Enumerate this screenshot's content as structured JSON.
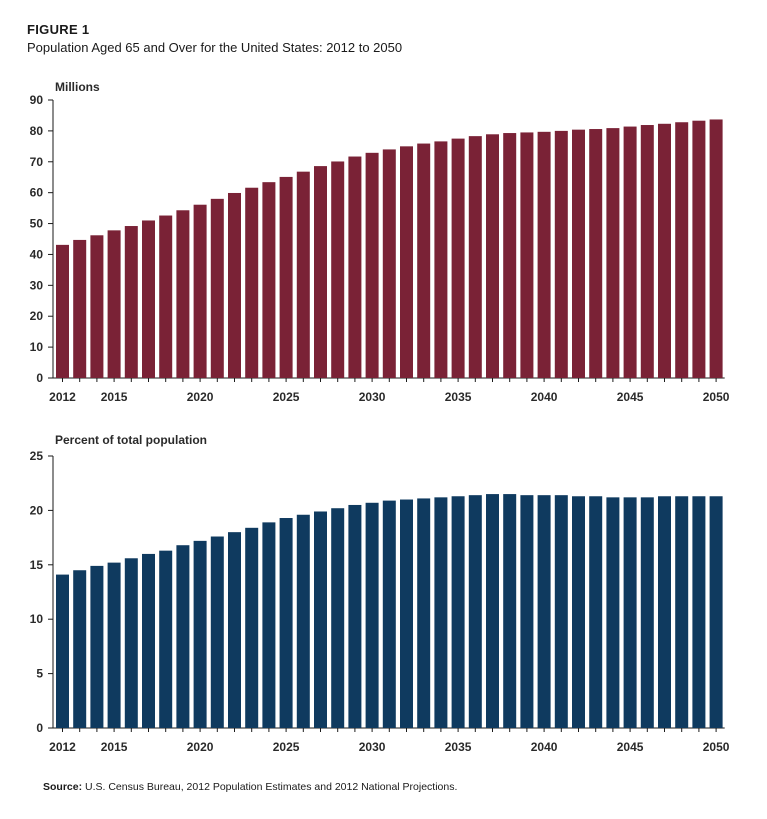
{
  "figure": {
    "label": "FIGURE 1",
    "title": "Population Aged 65 and Over for the United States: 2012 to 2050",
    "source_label": "Source:",
    "source_text": " U.S. Census Bureau, 2012 Population Estimates and 2012 National Projections."
  },
  "colors": {
    "panel1_bar": "#7a2236",
    "panel2_bar": "#0f3a5f",
    "axis": "#1a1a1a"
  },
  "chart_data": [
    {
      "type": "bar",
      "title": "",
      "ylabel": "Millions",
      "xlabel": "",
      "ylim": [
        0,
        90
      ],
      "yticks": [
        0,
        10,
        20,
        30,
        40,
        50,
        60,
        70,
        80,
        90
      ],
      "xtick_labels": [
        "2012",
        "2015",
        "2020",
        "2025",
        "2030",
        "2035",
        "2040",
        "2045",
        "2050"
      ],
      "categories": [
        2012,
        2013,
        2014,
        2015,
        2016,
        2017,
        2018,
        2019,
        2020,
        2021,
        2022,
        2023,
        2024,
        2025,
        2026,
        2027,
        2028,
        2029,
        2030,
        2031,
        2032,
        2033,
        2034,
        2035,
        2036,
        2037,
        2038,
        2039,
        2040,
        2041,
        2042,
        2043,
        2044,
        2045,
        2046,
        2047,
        2048,
        2049,
        2050
      ],
      "values": [
        43.1,
        44.7,
        46.2,
        47.8,
        49.2,
        51.0,
        52.6,
        54.3,
        56.1,
        58.0,
        59.9,
        61.6,
        63.4,
        65.1,
        66.8,
        68.6,
        70.1,
        71.7,
        72.9,
        74.0,
        75.0,
        75.9,
        76.6,
        77.5,
        78.3,
        78.9,
        79.3,
        79.5,
        79.7,
        80.0,
        80.4,
        80.6,
        80.9,
        81.4,
        81.9,
        82.3,
        82.8,
        83.3,
        83.7
      ],
      "grid": false
    },
    {
      "type": "bar",
      "title": "",
      "ylabel": "Percent of total population",
      "xlabel": "",
      "ylim": [
        0,
        25
      ],
      "yticks": [
        0,
        5,
        10,
        15,
        20,
        25
      ],
      "xtick_labels": [
        "2012",
        "2015",
        "2020",
        "2025",
        "2030",
        "2035",
        "2040",
        "2045",
        "2050"
      ],
      "categories": [
        2012,
        2013,
        2014,
        2015,
        2016,
        2017,
        2018,
        2019,
        2020,
        2021,
        2022,
        2023,
        2024,
        2025,
        2026,
        2027,
        2028,
        2029,
        2030,
        2031,
        2032,
        2033,
        2034,
        2035,
        2036,
        2037,
        2038,
        2039,
        2040,
        2041,
        2042,
        2043,
        2044,
        2045,
        2046,
        2047,
        2048,
        2049,
        2050
      ],
      "values": [
        14.1,
        14.5,
        14.9,
        15.2,
        15.6,
        16.0,
        16.3,
        16.8,
        17.2,
        17.6,
        18.0,
        18.4,
        18.9,
        19.3,
        19.6,
        19.9,
        20.2,
        20.5,
        20.7,
        20.9,
        21.0,
        21.1,
        21.2,
        21.3,
        21.4,
        21.5,
        21.5,
        21.4,
        21.4,
        21.4,
        21.3,
        21.3,
        21.2,
        21.2,
        21.2,
        21.3,
        21.3,
        21.3,
        21.3
      ],
      "grid": false
    }
  ]
}
